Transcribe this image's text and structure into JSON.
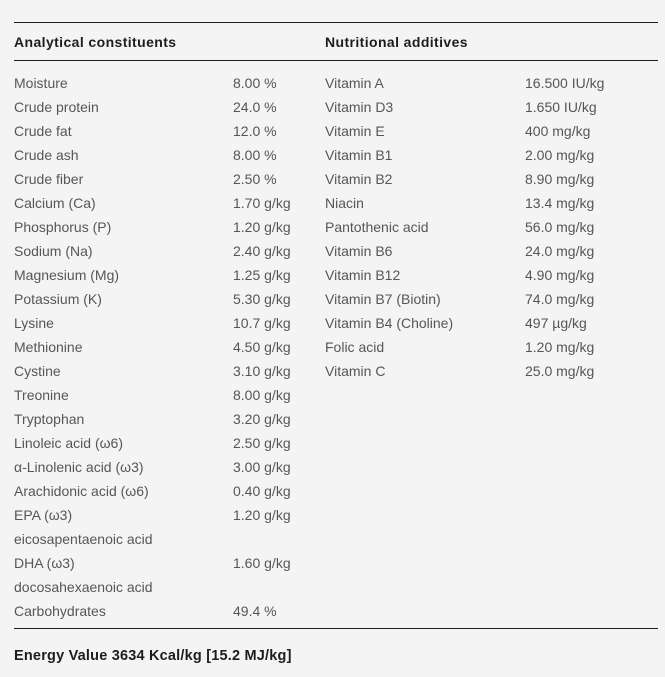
{
  "colors": {
    "background": "#f4f4f4",
    "heading_text": "#1d1d1b",
    "body_text": "#54565a",
    "rule": "#1d1d1b"
  },
  "table": {
    "left": {
      "header": "Analytical constituents",
      "rows": [
        {
          "label": "Moisture",
          "value": "8.00 %"
        },
        {
          "label": "Crude protein",
          "value": "24.0 %"
        },
        {
          "label": "Crude fat",
          "value": "12.0 %"
        },
        {
          "label": "Crude ash",
          "value": "8.00 %"
        },
        {
          "label": "Crude fiber",
          "value": "2.50 %"
        },
        {
          "label": "Calcium (Ca)",
          "value": "1.70 g/kg"
        },
        {
          "label": "Phosphorus (P)",
          "value": "1.20 g/kg"
        },
        {
          "label": "Sodium (Na)",
          "value": "2.40 g/kg"
        },
        {
          "label": "Magnesium (Mg)",
          "value": "1.25 g/kg"
        },
        {
          "label": "Potassium (K)",
          "value": "5.30 g/kg"
        },
        {
          "label": "Lysine",
          "value": "10.7 g/kg"
        },
        {
          "label": "Methionine",
          "value": "4.50 g/kg"
        },
        {
          "label": "Cystine",
          "value": "3.10 g/kg"
        },
        {
          "label": "Treonine",
          "value": "8.00 g/kg"
        },
        {
          "label": "Tryptophan",
          "value": "3.20 g/kg"
        },
        {
          "label": "Linoleic acid (ω6)",
          "value": "2.50 g/kg"
        },
        {
          "label": "α-Linolenic acid (ω3)",
          "value": "3.00 g/kg"
        },
        {
          "label": "Arachidonic acid (ω6)",
          "value": "0.40 g/kg"
        },
        {
          "label": "EPA (ω3)",
          "value": "1.20 g/kg"
        },
        {
          "label": "eicosapentaenoic acid",
          "value": ""
        },
        {
          "label": "DHA (ω3)",
          "value": "1.60 g/kg"
        },
        {
          "label": "docosahexaenoic acid",
          "value": ""
        },
        {
          "label": "Carbohydrates",
          "value": "49.4 %"
        }
      ]
    },
    "right": {
      "header": "Nutritional additives",
      "rows": [
        {
          "label": "Vitamin A",
          "value": "16.500 IU/kg"
        },
        {
          "label": "Vitamin D3",
          "value": "1.650 IU/kg"
        },
        {
          "label": "Vitamin E",
          "value": "400 mg/kg"
        },
        {
          "label": "Vitamin B1",
          "value": "2.00 mg/kg"
        },
        {
          "label": "Vitamin B2",
          "value": "8.90 mg/kg"
        },
        {
          "label": "Niacin",
          "value": "13.4 mg/kg"
        },
        {
          "label": "Pantothenic acid",
          "value": "56.0 mg/kg"
        },
        {
          "label": "Vitamin B6",
          "value": "24.0 mg/kg"
        },
        {
          "label": "Vitamin B12",
          "value": "4.90 mg/kg"
        },
        {
          "label": "Vitamin B7 (Biotin)",
          "value": "74.0 mg/kg"
        },
        {
          "label": "Vitamin B4 (Choline)",
          "value": "497 µg/kg"
        },
        {
          "label": "Folic acid",
          "value": "1.20 mg/kg"
        },
        {
          "label": "Vitamin C",
          "value": "25.0 mg/kg"
        }
      ]
    },
    "footer": "Energy Value 3634 Kcal/kg [15.2 MJ/kg]"
  }
}
